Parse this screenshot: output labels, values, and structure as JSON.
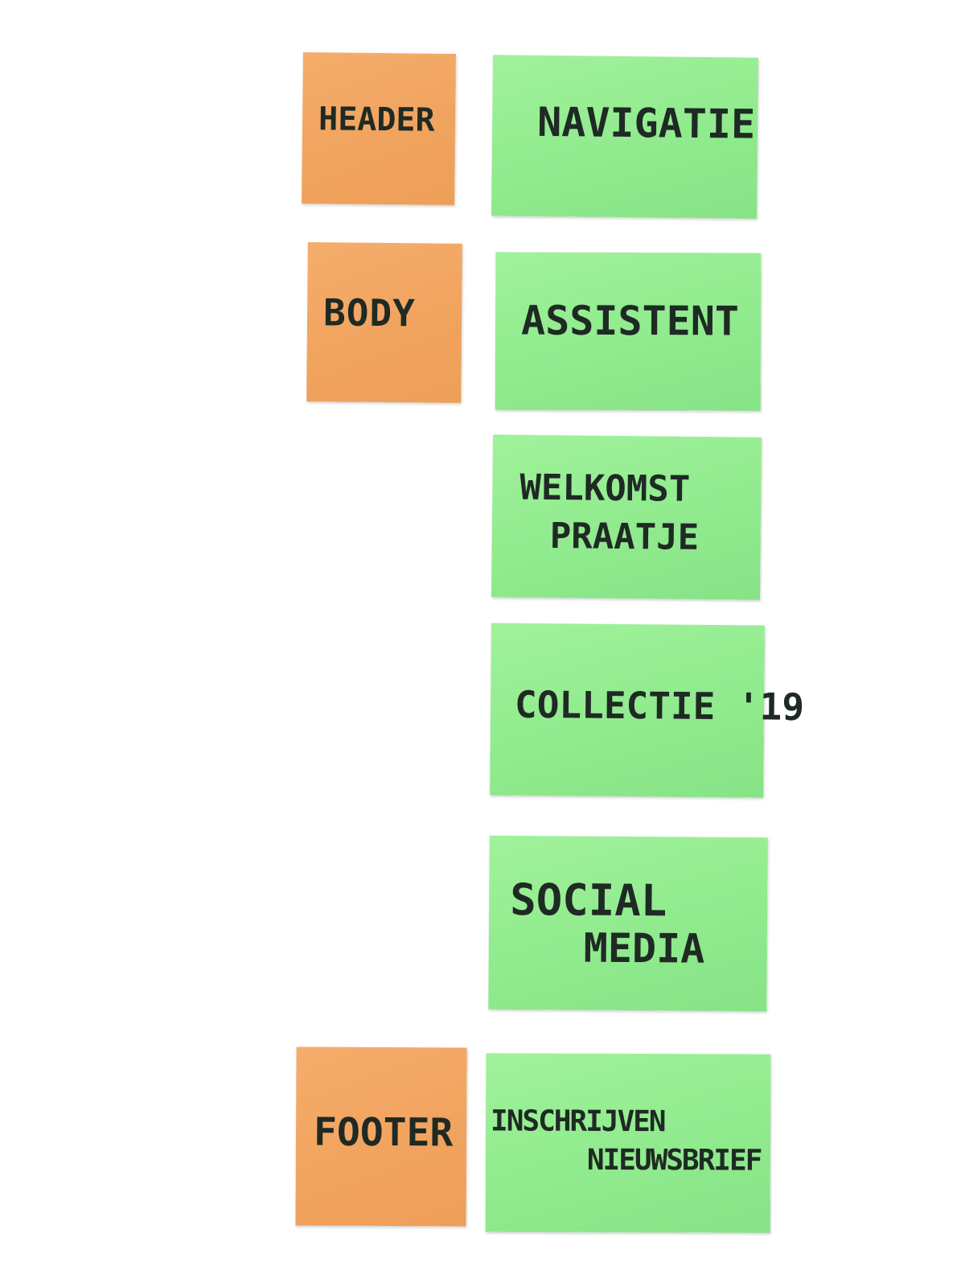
{
  "notes": {
    "header": "HEADER",
    "body": "BODY",
    "footer": "FOOTER",
    "navigatie": "NAVIGATIE",
    "assistent": "ASSISTENT",
    "welkomst_line1": "WELKOMST",
    "welkomst_line2": "PRAATJE",
    "collectie": "COLLECTIE '19",
    "social_line1": "SOCIAL",
    "social_line2": "MEDIA",
    "nieuwsbrief_line1": "INSCHRIJVEN",
    "nieuwsbrief_line2": "NIEUWSBRIEF"
  },
  "colors": {
    "orange_note": "#f1a45f",
    "green_note": "#93ec90",
    "ink": "#1f2a24",
    "background": "#ffffff"
  }
}
